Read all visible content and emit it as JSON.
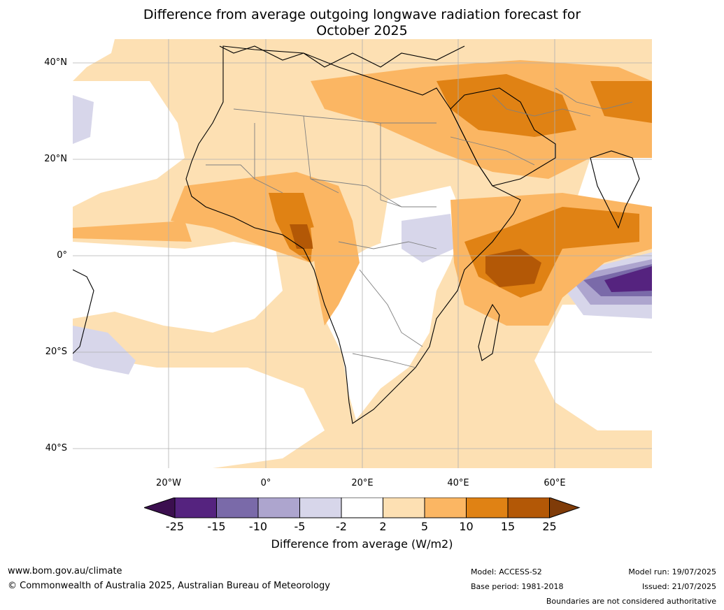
{
  "title_line1": "Difference from average outgoing longwave radiation forecast for",
  "title_line2": "October 2025",
  "lat_labels": [
    "40°N",
    "20°N",
    "0°",
    "20°S",
    "40°S"
  ],
  "lon_labels": [
    "20°W",
    "0°",
    "20°E",
    "40°E",
    "60°E"
  ],
  "colorbar": {
    "ticks": [
      "-25",
      "-15",
      "-10",
      "-5",
      "-2",
      "2",
      "5",
      "10",
      "15",
      "25"
    ],
    "colors": [
      "#3b0f4f",
      "#55237f",
      "#7a6aa9",
      "#ada5ce",
      "#d7d6ea",
      "#ffffff",
      "#fde0b3",
      "#fbb663",
      "#e08214",
      "#b35806",
      "#7f3b08"
    ],
    "label": "Difference from average (W/m2)"
  },
  "footer": {
    "website": "www.bom.gov.au/climate",
    "copyright": "© Commonwealth of Australia 2025, Australian Bureau of Meteorology",
    "model": "Model: ACCESS-S2",
    "base_period": "Base period: 1981-2018",
    "model_run": "Model run: 19/07/2025",
    "issued": "Issued: 21/07/2025",
    "disclaimer": "Boundaries are not considered authoritative"
  }
}
